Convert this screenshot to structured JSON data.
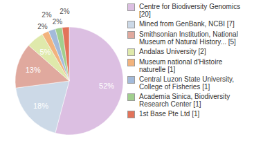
{
  "chart_data": {
    "type": "pie",
    "categories": [
      "Centre for Biodiversity Genomics [20]",
      "Mined from GenBank, NCBI [7]",
      "Smithsonian Institution, National Museum of Natural History... [5]",
      "Andalas University [2]",
      "Museum national d'Histoire naturelle [1]",
      "Central Luzon State University, College of Fisheries [1]",
      "Academia Sinica, Biodiversity Research Center [1]",
      "1st Base Pte Ltd [1]"
    ],
    "values": [
      52,
      18,
      13,
      5,
      2,
      2,
      2,
      2
    ],
    "value_labels": [
      "52%",
      "18%",
      "13%",
      "5%",
      "2%",
      "2%",
      "2%",
      "2%"
    ],
    "data_labels": true,
    "colors": [
      "#dcbfe2",
      "#ccd9e7",
      "#e0a99e",
      "#dfe9ab",
      "#f2b37d",
      "#a3bada",
      "#a1cf8e",
      "#e2735a"
    ],
    "legend": "right"
  }
}
